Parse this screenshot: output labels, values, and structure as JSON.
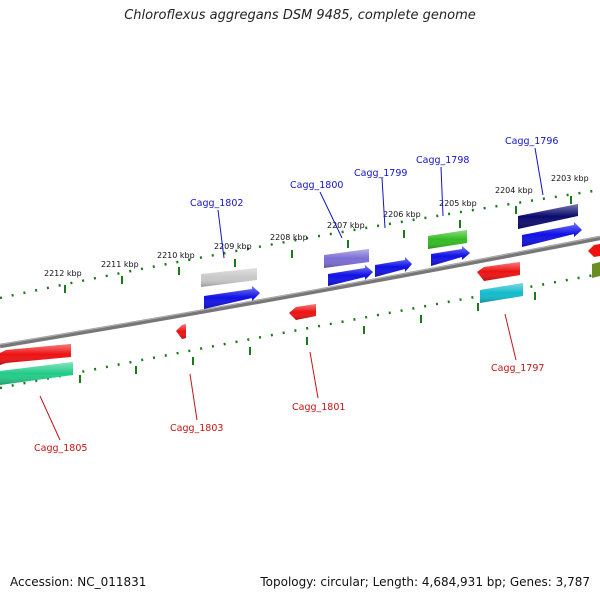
{
  "title": "Chloroflexus aggregans DSM 9485, complete genome",
  "footer": {
    "accession": "Accession: NC_011831",
    "summary": "Topology: circular; Length: 4,684,931 bp; Genes: 3,787"
  },
  "scale_labels": [
    "2212 kbp",
    "2211 kbp",
    "2210 kbp",
    "2209 kbp",
    "2208 kbp",
    "2207 kbp",
    "2206 kbp",
    "2205 kbp",
    "2204 kbp",
    "2203 kbp"
  ],
  "genes_top": [
    "Cagg_1802",
    "Cagg_1800",
    "Cagg_1799",
    "Cagg_1798",
    "Cagg_1796"
  ],
  "genes_bottom": [
    "Cagg_1805",
    "Cagg_1803",
    "Cagg_1801",
    "Cagg_1797"
  ],
  "colors": {
    "backbone": "#777777",
    "ticks": "#1a7a1a",
    "top_label": "#1414c8",
    "bottom_label": "#c81414"
  }
}
